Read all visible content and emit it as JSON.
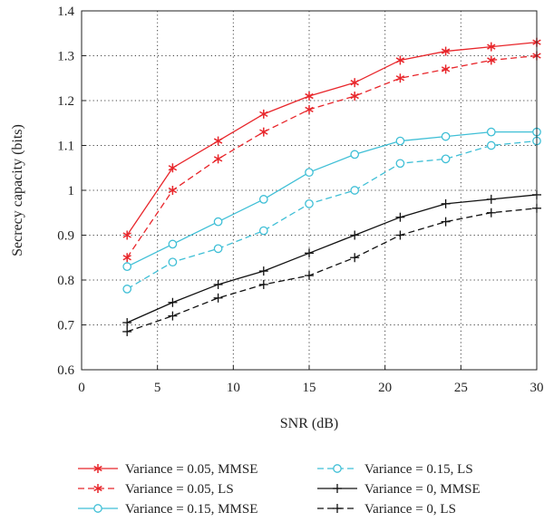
{
  "chart_data": {
    "type": "line",
    "xlabel": "SNR (dB)",
    "ylabel": "Secrecy capacity (bits)",
    "xlim": [
      0,
      30
    ],
    "ylim": [
      0.6,
      1.4
    ],
    "xticks": [
      0,
      5,
      10,
      15,
      20,
      25,
      30
    ],
    "xtick_labels": [
      "0",
      "5",
      "10",
      "15",
      "20",
      "25",
      "30"
    ],
    "yticks": [
      0.6,
      0.7,
      0.8,
      0.9,
      1.0,
      1.1,
      1.2,
      1.3,
      1.4
    ],
    "ytick_labels": [
      "0.6",
      "0.7",
      "0.8",
      "0.9",
      "1",
      "1.1",
      "1.2",
      "1.3",
      "1.4"
    ],
    "grid": true,
    "legend_position": "bottom",
    "x": [
      3,
      6,
      9,
      12,
      15,
      18,
      21,
      24,
      27,
      30
    ],
    "series": [
      {
        "name": "Variance = 0.05, MMSE",
        "color": "#e8262b",
        "dash": "solid",
        "marker": "asterisk",
        "values": [
          0.9,
          1.05,
          1.11,
          1.17,
          1.21,
          1.24,
          1.29,
          1.31,
          1.32,
          1.33
        ]
      },
      {
        "name": "Variance = 0.05, LS",
        "color": "#e8262b",
        "dash": "dashed",
        "marker": "asterisk",
        "values": [
          0.85,
          1.0,
          1.07,
          1.13,
          1.18,
          1.21,
          1.25,
          1.27,
          1.29,
          1.3
        ]
      },
      {
        "name": "Variance = 0.15, MMSE",
        "color": "#3fbfd6",
        "dash": "solid",
        "marker": "circle",
        "values": [
          0.83,
          0.88,
          0.93,
          0.98,
          1.04,
          1.08,
          1.11,
          1.12,
          1.13,
          1.13
        ]
      },
      {
        "name": "Variance = 0.15, LS",
        "color": "#3fbfd6",
        "dash": "dashed",
        "marker": "circle",
        "values": [
          0.78,
          0.84,
          0.87,
          0.91,
          0.97,
          1.0,
          1.06,
          1.07,
          1.1,
          1.11
        ]
      },
      {
        "name": "Variance = 0, MMSE",
        "color": "#111111",
        "dash": "solid",
        "marker": "plus",
        "values": [
          0.705,
          0.75,
          0.79,
          0.82,
          0.86,
          0.9,
          0.94,
          0.97,
          0.98,
          0.99
        ]
      },
      {
        "name": "Variance = 0, LS",
        "color": "#111111",
        "dash": "dashed",
        "marker": "plus",
        "values": [
          0.685,
          0.72,
          0.76,
          0.79,
          0.81,
          0.85,
          0.9,
          0.93,
          0.95,
          0.96
        ]
      }
    ]
  }
}
